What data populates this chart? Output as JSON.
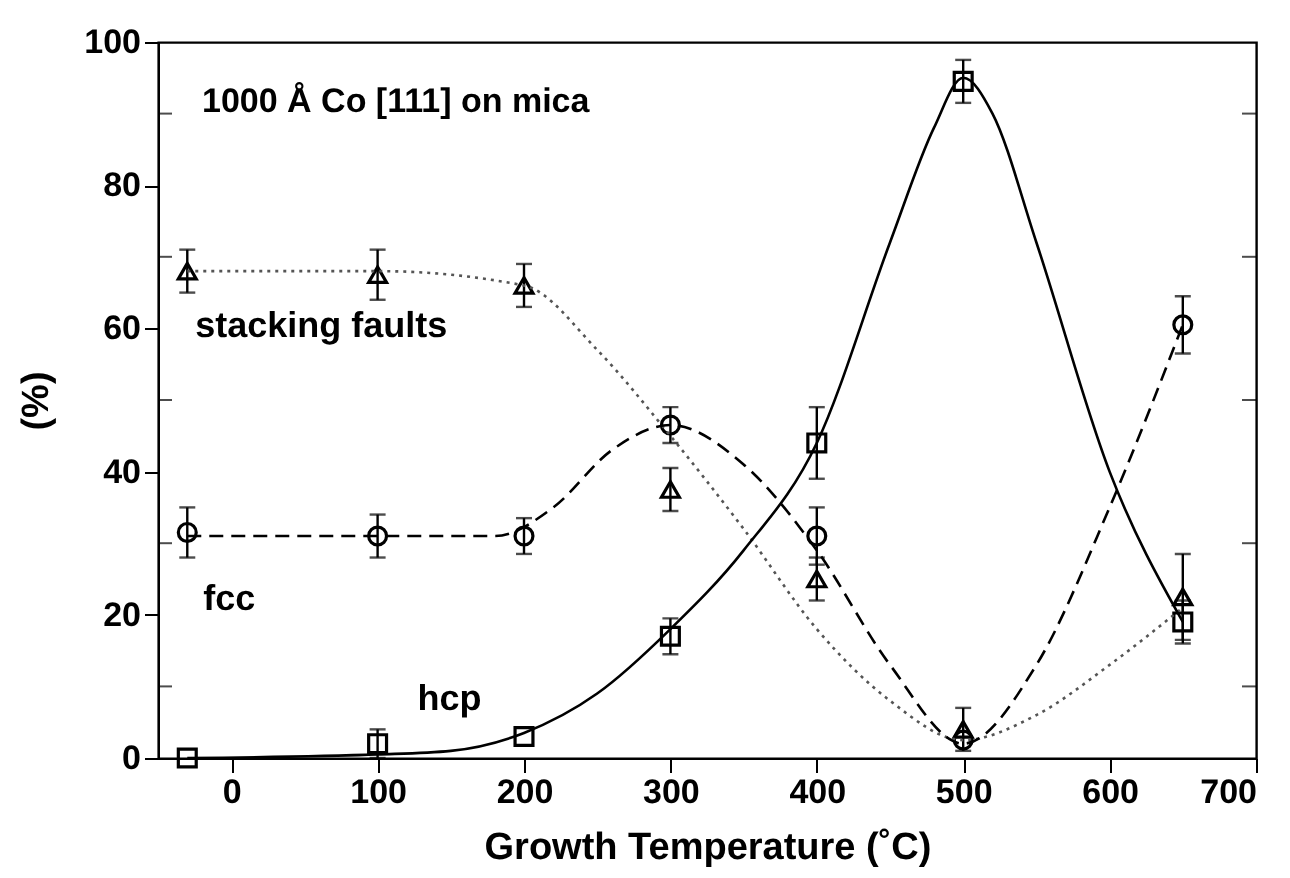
{
  "chart_data": {
    "type": "scatter",
    "xlabel": "Growth Temperature    (˚C)",
    "ylabel": "(%)",
    "annotations": [
      "1000 Å Co [111] on mica"
    ],
    "xlim": [
      -50,
      700
    ],
    "xticks": [
      0,
      100,
      200,
      300,
      400,
      500,
      600,
      700
    ],
    "ylim": [
      0,
      100
    ],
    "yticks": [
      0,
      {
        "value": 10,
        "label": null
      },
      20,
      {
        "value": 30,
        "label": null
      },
      40,
      {
        "value": 50,
        "label": null
      },
      60,
      {
        "value": 70,
        "label": null
      },
      80,
      {
        "value": 90,
        "label": null
      },
      100
    ],
    "grid": false,
    "series": [
      {
        "name": "stacking faults",
        "marker": "triangle",
        "color": "#000000",
        "x": [
          -30,
          100,
          200,
          300,
          400,
          500,
          650
        ],
        "values": [
          68,
          67.5,
          66,
          37.5,
          25,
          4,
          22.5
        ],
        "errors": [
          3,
          3.5,
          3,
          3,
          3,
          3,
          6
        ]
      },
      {
        "name": "fcc",
        "marker": "circle",
        "color": "#000000",
        "x": [
          -30,
          100,
          200,
          300,
          400,
          500,
          650
        ],
        "values": [
          31.5,
          31,
          31,
          46.5,
          31,
          2.5,
          60.5
        ],
        "errors": [
          3.5,
          3,
          2.5,
          2.5,
          4,
          null,
          4
        ]
      },
      {
        "name": "hcp",
        "marker": "square",
        "color": "#000000",
        "x": [
          -30,
          100,
          200,
          300,
          400,
          500,
          650
        ],
        "values": [
          0,
          2,
          3,
          17,
          44,
          94.5,
          19
        ],
        "errors": [
          null,
          2,
          null,
          2.5,
          5,
          3,
          3
        ]
      },
      {
        "type": "line",
        "line_style": "dotted",
        "color": "#555555",
        "x": [
          -30,
          100,
          200,
          250,
          300,
          350,
          400,
          450,
          500,
          550,
          600,
          650
        ],
        "values": [
          68,
          68,
          66,
          57,
          45,
          32,
          18,
          8,
          2.5,
          6,
          13,
          21
        ]
      },
      {
        "type": "line",
        "line_style": "dashed",
        "color": "#000000",
        "x": [
          -30,
          100,
          180,
          220,
          260,
          300,
          350,
          400,
          450,
          500,
          550,
          600,
          650
        ],
        "values": [
          31,
          31,
          31,
          35,
          43,
          46.5,
          41,
          29,
          13,
          2,
          13,
          35,
          60.5
        ]
      },
      {
        "type": "line",
        "line_style": "solid",
        "color": "#000000",
        "x": [
          -30,
          100,
          150,
          200,
          250,
          300,
          350,
          400,
          450,
          480,
          500,
          520,
          550,
          600,
          650
        ],
        "values": [
          0,
          0.5,
          1,
          3.5,
          9,
          18,
          29,
          44,
          72,
          88,
          95,
          90,
          72,
          40,
          19
        ]
      }
    ]
  }
}
